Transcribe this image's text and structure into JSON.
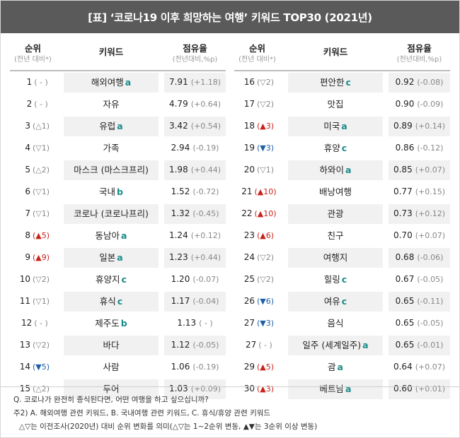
{
  "title": "[표] ‘코로나19 이후 희망하는 여행’ 키워드 TOP30 (2021년)",
  "headers": {
    "rank": "순위",
    "rank_sub": "(전년 대비*)",
    "keyword": "키워드",
    "share": "점유율",
    "share_sub": "(전년대비,%p)"
  },
  "left_rows": [
    {
      "rank": "1",
      "change": "( - )",
      "dir": "",
      "keyword": "해외여행",
      "cat": "a",
      "share": "7.91",
      "diff": "(+1.18)"
    },
    {
      "rank": "2",
      "change": "( - )",
      "dir": "",
      "keyword": "자유",
      "cat": "",
      "share": "4.79",
      "diff": "(+0.64)"
    },
    {
      "rank": "3",
      "change": "(△1)",
      "dir": "",
      "keyword": "유럽",
      "cat": "a",
      "share": "3.42",
      "diff": "(+0.54)"
    },
    {
      "rank": "4",
      "change": "(▽1)",
      "dir": "",
      "keyword": "가족",
      "cat": "",
      "share": "2.94",
      "diff": "(-0.19)"
    },
    {
      "rank": "5",
      "change": "(△2)",
      "dir": "",
      "keyword": "마스크 (마스크프리)",
      "cat": "",
      "share": "1.98",
      "diff": "(+0.44)"
    },
    {
      "rank": "6",
      "change": "(▽1)",
      "dir": "",
      "keyword": "국내",
      "cat": "b",
      "share": "1.52",
      "diff": "(-0.72)"
    },
    {
      "rank": "7",
      "change": "(▽1)",
      "dir": "",
      "keyword": "코로나 (코로나프리)",
      "cat": "",
      "share": "1.32",
      "diff": "(-0.45)"
    },
    {
      "rank": "8",
      "change": "(▲5)",
      "dir": "up",
      "keyword": "동남아",
      "cat": "a",
      "share": "1.24",
      "diff": "(+0.12)"
    },
    {
      "rank": "9",
      "change": "(▲9)",
      "dir": "up",
      "keyword": "일본",
      "cat": "a",
      "share": "1.23",
      "diff": "(+0.44)"
    },
    {
      "rank": "10",
      "change": "(▽2)",
      "dir": "",
      "keyword": "휴양지",
      "cat": "c",
      "share": "1.20",
      "diff": "(-0.07)"
    },
    {
      "rank": "11",
      "change": "(▽1)",
      "dir": "",
      "keyword": "휴식",
      "cat": "c",
      "share": "1.17",
      "diff": "(-0.04)"
    },
    {
      "rank": "12",
      "change": "( - )",
      "dir": "",
      "keyword": "제주도",
      "cat": "b",
      "share": "1.13",
      "diff": "( - )"
    },
    {
      "rank": "13",
      "change": "(▽2)",
      "dir": "",
      "keyword": "바다",
      "cat": "",
      "share": "1.12",
      "diff": "(-0.05)"
    },
    {
      "rank": "14",
      "change": "(▼5)",
      "dir": "down",
      "keyword": "사람",
      "cat": "",
      "share": "1.06",
      "diff": "(-0.19)"
    },
    {
      "rank": "15",
      "change": "(△2)",
      "dir": "",
      "keyword": "투어",
      "cat": "",
      "share": "1.03",
      "diff": "(+0.09)"
    }
  ],
  "right_rows": [
    {
      "rank": "16",
      "change": "(▽2)",
      "dir": "",
      "keyword": "편안한",
      "cat": "c",
      "share": "0.92",
      "diff": "(-0.08)"
    },
    {
      "rank": "17",
      "change": "(▽2)",
      "dir": "",
      "keyword": "맛집",
      "cat": "",
      "share": "0.90",
      "diff": "(-0.09)"
    },
    {
      "rank": "18",
      "change": "(▲3)",
      "dir": "up",
      "keyword": "미국",
      "cat": "a",
      "share": "0.89",
      "diff": "(+0.14)"
    },
    {
      "rank": "19",
      "change": "(▼3)",
      "dir": "down",
      "keyword": "휴양",
      "cat": "c",
      "share": "0.86",
      "diff": "(-0.12)"
    },
    {
      "rank": "20",
      "change": "(▽1)",
      "dir": "",
      "keyword": "하와이",
      "cat": "a",
      "share": "0.85",
      "diff": "(+0.07)"
    },
    {
      "rank": "21",
      "change": "(▲10)",
      "dir": "up",
      "keyword": "배낭여행",
      "cat": "",
      "share": "0.77",
      "diff": "(+0.15)"
    },
    {
      "rank": "22",
      "change": "(▲10)",
      "dir": "up",
      "keyword": "관광",
      "cat": "",
      "share": "0.73",
      "diff": "(+0.12)"
    },
    {
      "rank": "23",
      "change": "(▲6)",
      "dir": "up",
      "keyword": "친구",
      "cat": "",
      "share": "0.70",
      "diff": "(+0.07)"
    },
    {
      "rank": "24",
      "change": "(▽2)",
      "dir": "",
      "keyword": "여행지",
      "cat": "",
      "share": "0.68",
      "diff": "(-0.06)"
    },
    {
      "rank": "25",
      "change": "(▽2)",
      "dir": "",
      "keyword": "힐링",
      "cat": "c",
      "share": "0.67",
      "diff": "(-0.05)"
    },
    {
      "rank": "26",
      "change": "(▼6)",
      "dir": "down",
      "keyword": "여유",
      "cat": "c",
      "share": "0.65",
      "diff": "(-0.11)"
    },
    {
      "rank": "27",
      "change": "(▼3)",
      "dir": "down",
      "keyword": "음식",
      "cat": "",
      "share": "0.65",
      "diff": "(-0.05)"
    },
    {
      "rank": "27",
      "change": "( - )",
      "dir": "",
      "keyword": "일주 (세계일주)",
      "cat": "a",
      "share": "0.65",
      "diff": "(-0.01)"
    },
    {
      "rank": "29",
      "change": "(▲5)",
      "dir": "up",
      "keyword": "괌",
      "cat": "a",
      "share": "0.64",
      "diff": "(+0.07)"
    },
    {
      "rank": "30",
      "change": "(▲3)",
      "dir": "up",
      "keyword": "베트남",
      "cat": "a",
      "share": "0.60",
      "diff": "(+0.01)"
    }
  ],
  "notes": [
    "Q. 코로나가 완전히 종식된다면, 어떤 여행을 하고 싶으십니까?",
    "주2) A. 해외여행 관련 키워드, B. 국내여행 관련 키워드, C. 휴식/휴양 관련 키워드",
    "△▽는 이전조사(2020년) 대비 순위 변화를 의미(△▽는 1~2순위 변동, ▲▼는 3순위 이상 변동)"
  ],
  "colors": {
    "title_bg": "#5a5a5a",
    "row_shade": "#f1f1f1",
    "category": "#1a8c8a",
    "up": "#c8221b",
    "down": "#1d5fa8"
  }
}
